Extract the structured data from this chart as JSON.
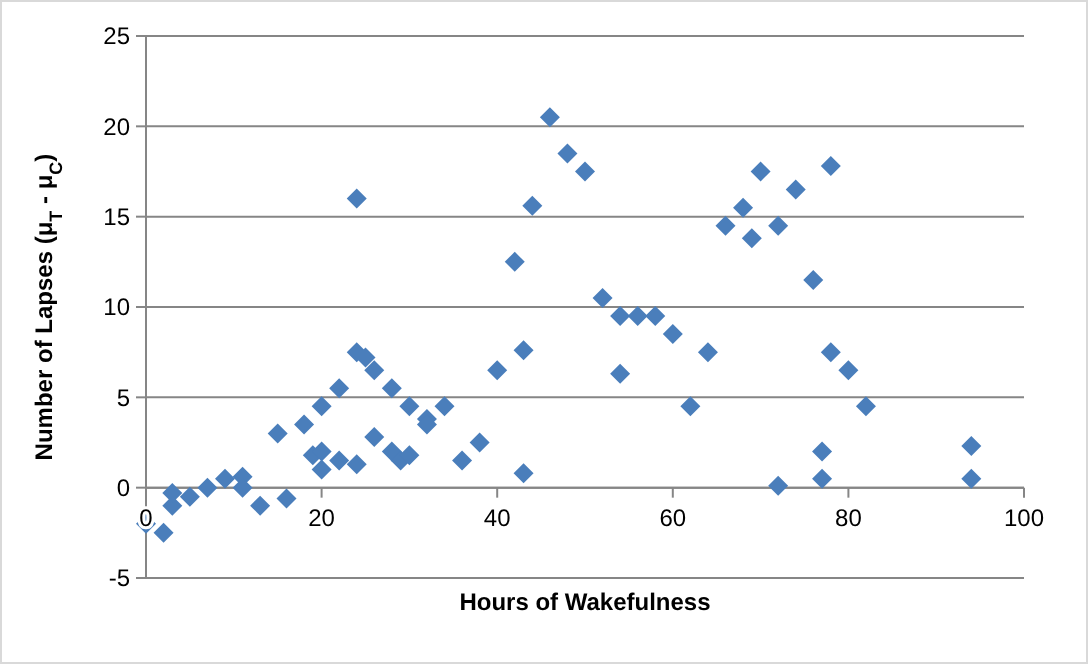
{
  "chart_data": {
    "type": "scatter",
    "xlabel": "Hours of Wakefulness",
    "ylabel": "Number of Lapses (μ$_{T}$ - μ$_{C}$)",
    "xlim": [
      0,
      100
    ],
    "xticks": [
      0,
      20,
      40,
      60,
      80,
      100
    ],
    "ylim": [
      -5,
      25
    ],
    "yticks": [
      -5,
      0,
      5,
      10,
      15,
      20,
      25
    ],
    "grid": "y",
    "marker": "diamond",
    "series": [
      {
        "color": "#4a7ebb",
        "x": [
          0,
          2,
          3,
          3,
          5,
          7,
          9,
          11,
          11,
          13,
          15,
          16,
          18,
          19,
          20,
          20,
          20,
          22,
          22,
          24,
          24,
          24,
          25,
          26,
          26,
          28,
          28,
          29,
          30,
          30,
          32,
          32,
          34,
          36,
          38,
          40,
          42,
          43,
          43,
          44,
          46,
          48,
          50,
          52,
          54,
          54,
          56,
          58,
          60,
          62,
          64,
          66,
          68,
          69,
          70,
          72,
          72,
          74,
          76,
          77,
          77,
          78,
          78,
          80,
          82,
          94,
          94
        ],
        "values": [
          -2,
          -2.5,
          -1,
          -0.3,
          -0.5,
          0,
          0.5,
          0.6,
          0,
          -1,
          3,
          -0.6,
          3.5,
          1.8,
          1,
          2,
          4.5,
          5.5,
          1.5,
          16,
          7.5,
          1.3,
          7.2,
          6.5,
          2.8,
          5.5,
          2,
          1.5,
          4.5,
          1.8,
          3.8,
          3.5,
          4.5,
          1.5,
          2.5,
          6.5,
          12.5,
          7.6,
          0.8,
          15.6,
          20.5,
          18.5,
          17.5,
          10.5,
          9.5,
          6.3,
          9.5,
          9.5,
          8.5,
          4.5,
          7.5,
          14.5,
          15.5,
          13.8,
          17.5,
          14.5,
          0.1,
          16.5,
          11.5,
          2,
          0.5,
          17.8,
          7.5,
          6.5,
          4.5,
          2.3,
          0.5
        ]
      }
    ]
  }
}
